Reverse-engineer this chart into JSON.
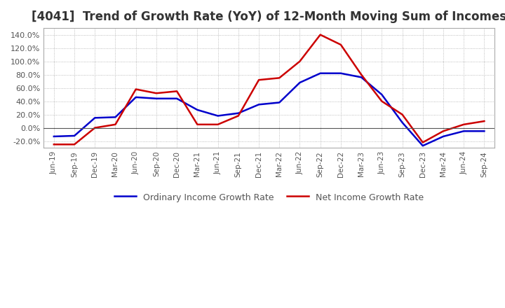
{
  "title": "[4041]  Trend of Growth Rate (YoY) of 12-Month Moving Sum of Incomes",
  "title_fontsize": 12,
  "ylim": [
    -30,
    150
  ],
  "yticks": [
    -20,
    0,
    20,
    40,
    60,
    80,
    100,
    120,
    140
  ],
  "background_color": "#ffffff",
  "plot_bg_color": "#ffffff",
  "grid_color": "#aaaaaa",
  "ordinary_color": "#0000cc",
  "net_color": "#cc0000",
  "legend_labels": [
    "Ordinary Income Growth Rate",
    "Net Income Growth Rate"
  ],
  "x_labels": [
    "Jun-19",
    "Sep-19",
    "Dec-19",
    "Mar-20",
    "Jun-20",
    "Sep-20",
    "Dec-20",
    "Mar-21",
    "Jun-21",
    "Sep-21",
    "Dec-21",
    "Mar-22",
    "Jun-22",
    "Sep-22",
    "Dec-22",
    "Mar-23",
    "Jun-23",
    "Sep-23",
    "Dec-23",
    "Mar-24",
    "Jun-24",
    "Sep-24"
  ],
  "ordinary_income": [
    -13,
    -12,
    15,
    16,
    46,
    44,
    44,
    27,
    18,
    22,
    35,
    38,
    68,
    82,
    82,
    76,
    50,
    8,
    -27,
    -13,
    -5,
    -5
  ],
  "net_income": [
    -25,
    -25,
    0,
    5,
    58,
    52,
    55,
    5,
    5,
    18,
    72,
    75,
    100,
    140,
    125,
    80,
    40,
    20,
    -22,
    -5,
    5,
    10
  ]
}
